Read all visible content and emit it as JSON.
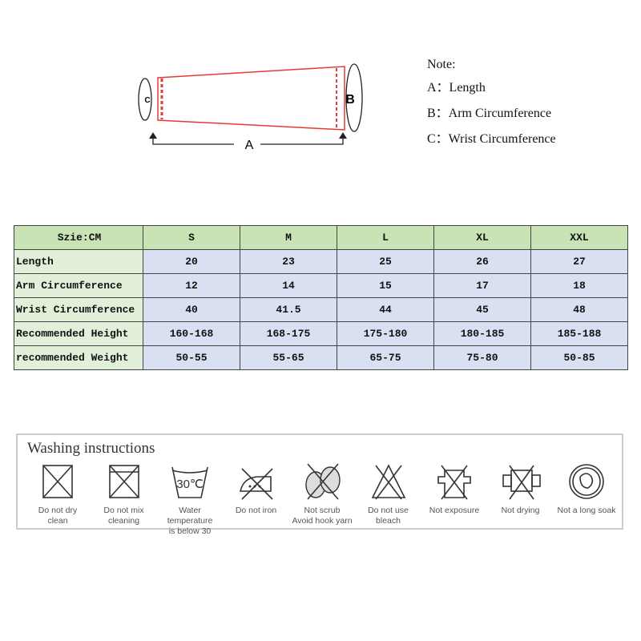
{
  "diagram": {
    "label_a": "A",
    "label_b": "B",
    "label_c": "C",
    "line_color": "#e53935"
  },
  "notes": {
    "title": "Note:",
    "items": [
      "A：Length",
      "B：Arm Circumference",
      "C：Wrist Circumference"
    ]
  },
  "size_table": {
    "header": [
      "Szie:CM",
      "S",
      "M",
      "L",
      "XL",
      "XXL"
    ],
    "rows": [
      {
        "label": "Length",
        "values": [
          "20",
          "23",
          "25",
          "26",
          "27"
        ]
      },
      {
        "label": "Arm Circumference",
        "values": [
          "12",
          "14",
          "15",
          "17",
          "18"
        ]
      },
      {
        "label": "Wrist Circumference",
        "values": [
          "40",
          "41.5",
          "44",
          "45",
          "48"
        ]
      },
      {
        "label": "Recommended Height",
        "values": [
          "160-168",
          "168-175",
          "175-180",
          "180-185",
          "185-188"
        ]
      },
      {
        "label": "recommended Weight",
        "values": [
          "50-55",
          "55-65",
          "65-75",
          "75-80",
          "50-85"
        ]
      }
    ],
    "colors": {
      "header": "#c9e3b5",
      "label": "#e3f0d9",
      "cell": "#d9e0f1"
    }
  },
  "washing": {
    "title": "Washing instructions",
    "items": [
      {
        "icon": "no-dry-clean-icon",
        "label": "Do not dry\nclean"
      },
      {
        "icon": "no-mix-cleaning-icon",
        "label": "Do not mix\ncleaning"
      },
      {
        "icon": "wash-30-icon",
        "label": "Water temperature\nis below 30",
        "badge": "30℃"
      },
      {
        "icon": "no-iron-icon",
        "label": "Do not iron"
      },
      {
        "icon": "no-scrub-icon",
        "label": "Not scrub\nAvoid hook yarn"
      },
      {
        "icon": "no-bleach-icon",
        "label": "Do not use\nbleach"
      },
      {
        "icon": "no-exposure-icon",
        "label": "Not exposure"
      },
      {
        "icon": "no-drying-icon",
        "label": "Not drying"
      },
      {
        "icon": "no-long-soak-icon",
        "label": "Not a long soak"
      }
    ]
  }
}
